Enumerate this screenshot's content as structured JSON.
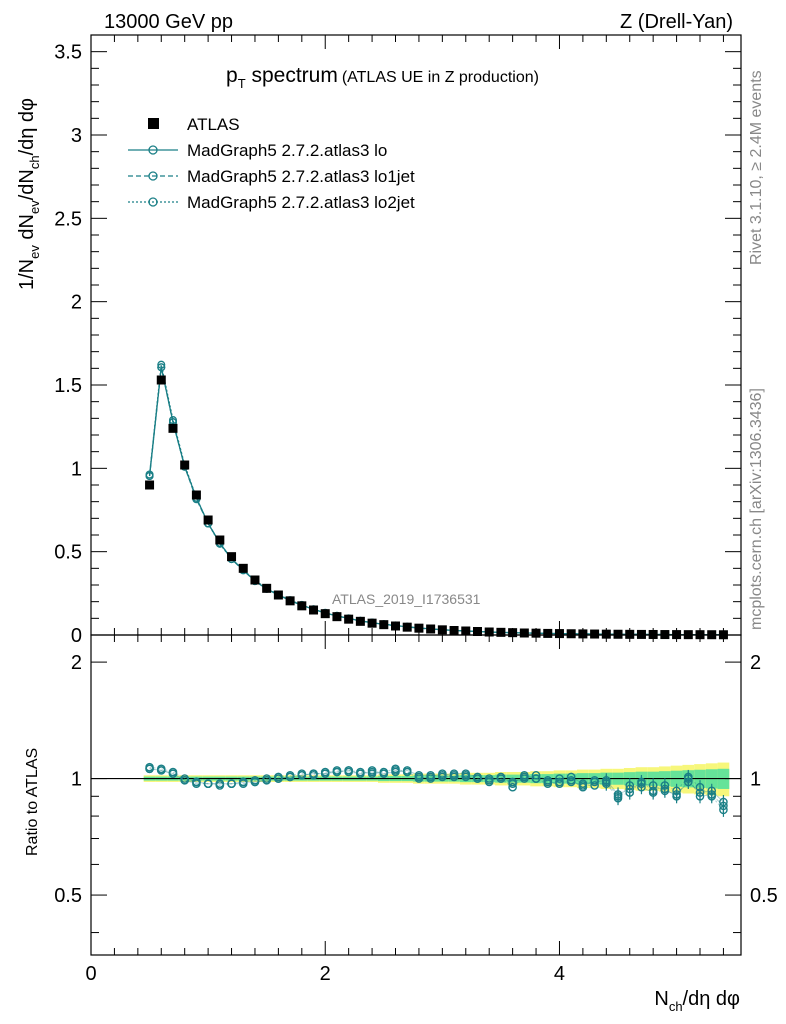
{
  "header": {
    "left": "13000 GeV pp",
    "right": "Z (Drell-Yan)"
  },
  "title": {
    "main": "p",
    "main_sub": "T",
    "main_rest": " spectrum",
    "detail": "(ATLAS UE in Z production)"
  },
  "side_labels": {
    "rivet": "Rivet 3.1.10, ≥ 2.4M events",
    "mcplots": "mcplots.cern.ch [arXiv:1306.3436]"
  },
  "watermark": "ATLAS_2019_I1736531",
  "axes": {
    "ylabel_top": {
      "p1": "1/N",
      "s1": "ev",
      "p2": " dN",
      "s2": "ev",
      "p3": "/dN",
      "s3": "ch",
      "p4": "/dη dφ"
    },
    "ylabel_bottom": "Ratio to ATLAS",
    "xlabel": {
      "p1": "N",
      "s1": "ch",
      "p2": "/dη dφ"
    }
  },
  "legend": [
    {
      "label": "ATLAS",
      "style": "data"
    },
    {
      "label": "MadGraph5 2.7.2.atlas3 lo",
      "style": "solid"
    },
    {
      "label": "MadGraph5 2.7.2.atlas3 lo1jet",
      "style": "dashed"
    },
    {
      "label": "MadGraph5 2.7.2.atlas3 lo2jet",
      "style": "dotted"
    }
  ],
  "colors": {
    "mc": "#1a7f86",
    "band_inner": "#66e399",
    "band_outer": "#f7f77b"
  },
  "chart_data": {
    "type": "scatter",
    "x": [
      0.5,
      0.6,
      0.7,
      0.8,
      0.9,
      1.0,
      1.1,
      1.2,
      1.3,
      1.4,
      1.5,
      1.6,
      1.7,
      1.8,
      1.9,
      2.0,
      2.1,
      2.2,
      2.3,
      2.4,
      2.5,
      2.6,
      2.7,
      2.8,
      2.9,
      3.0,
      3.1,
      3.2,
      3.3,
      3.4,
      3.5,
      3.6,
      3.7,
      3.8,
      3.9,
      4.0,
      4.1,
      4.2,
      4.3,
      4.4,
      4.5,
      4.6,
      4.7,
      4.8,
      4.9,
      5.0,
      5.1,
      5.2,
      5.3,
      5.4
    ],
    "data": [
      0.9,
      1.53,
      1.24,
      1.02,
      0.84,
      0.69,
      0.57,
      0.47,
      0.4,
      0.33,
      0.28,
      0.24,
      0.205,
      0.175,
      0.15,
      0.128,
      0.11,
      0.095,
      0.082,
      0.071,
      0.062,
      0.054,
      0.047,
      0.041,
      0.036,
      0.031,
      0.027,
      0.024,
      0.021,
      0.018,
      0.016,
      0.014,
      0.012,
      0.011,
      0.0095,
      0.0085,
      0.0075,
      0.0066,
      0.0058,
      0.0051,
      0.0045,
      0.004,
      0.0035,
      0.0031,
      0.0027,
      0.0024,
      0.0021,
      0.0019,
      0.0017,
      0.0015
    ],
    "series": [
      {
        "name": "MadGraph5 2.7.2.atlas3 lo",
        "ratio": [
          1.06,
          1.05,
          1.03,
          0.99,
          0.98,
          0.97,
          0.97,
          0.97,
          0.98,
          0.98,
          0.99,
          1.0,
          1.01,
          1.02,
          1.03,
          1.03,
          1.04,
          1.05,
          1.03,
          1.04,
          1.03,
          1.04,
          1.05,
          1.02,
          1.02,
          1.02,
          1.03,
          1.03,
          1.01,
          1.0,
          1.0,
          0.98,
          1.0,
          1.02,
          0.99,
          1.0,
          1.01,
          0.97,
          0.98,
          0.99,
          0.91,
          0.94,
          0.97,
          0.96,
          0.93,
          0.91,
          0.98,
          0.92,
          0.93,
          0.87
        ]
      },
      {
        "name": "MadGraph5 2.7.2.atlas3 lo1jet",
        "ratio": [
          1.06,
          1.05,
          1.03,
          0.99,
          0.97,
          0.97,
          0.97,
          0.97,
          0.97,
          0.98,
          0.99,
          1.0,
          1.01,
          1.02,
          1.03,
          1.03,
          1.05,
          1.04,
          1.03,
          1.05,
          1.03,
          1.05,
          1.04,
          1.01,
          1.0,
          1.01,
          1.02,
          1.02,
          1.0,
          0.98,
          1.01,
          0.97,
          1.02,
          1.0,
          0.98,
          0.97,
          0.99,
          0.95,
          0.99,
          0.97,
          0.89,
          0.96,
          0.95,
          0.92,
          0.94,
          0.9,
          1.0,
          0.9,
          0.91,
          0.85
        ]
      },
      {
        "name": "MadGraph5 2.7.2.atlas3 lo2jet",
        "ratio": [
          1.07,
          1.06,
          1.04,
          1.0,
          0.98,
          0.97,
          0.96,
          0.97,
          0.98,
          0.99,
          1.0,
          1.01,
          1.02,
          1.03,
          1.02,
          1.04,
          1.04,
          1.05,
          1.04,
          1.03,
          1.04,
          1.06,
          1.04,
          1.0,
          1.01,
          1.03,
          1.01,
          1.01,
          1.0,
          0.99,
          1.0,
          0.95,
          1.01,
          1.0,
          0.97,
          0.98,
          0.98,
          0.96,
          0.96,
          0.98,
          0.9,
          0.92,
          0.98,
          0.93,
          0.96,
          0.93,
          1.01,
          0.95,
          0.9,
          0.83
        ]
      }
    ],
    "band_outer_halfwidth": [
      0.02,
      0.02,
      0.02,
      0.02,
      0.02,
      0.02,
      0.02,
      0.02,
      0.02,
      0.02,
      0.02,
      0.02,
      0.02,
      0.02,
      0.02,
      0.02,
      0.02,
      0.02,
      0.02,
      0.02,
      0.025,
      0.025,
      0.025,
      0.03,
      0.03,
      0.03,
      0.03,
      0.035,
      0.035,
      0.035,
      0.04,
      0.04,
      0.04,
      0.045,
      0.045,
      0.05,
      0.05,
      0.055,
      0.055,
      0.06,
      0.06,
      0.065,
      0.07,
      0.07,
      0.075,
      0.08,
      0.085,
      0.09,
      0.095,
      0.1
    ],
    "xlim": [
      0,
      5.55
    ],
    "ylim_top": [
      0,
      3.6
    ],
    "ylim_ratio": [
      0.35,
      2.35
    ],
    "ratio_log_scale": true,
    "xticks": [
      "0",
      "2",
      "4"
    ],
    "yticks_top": [
      "0",
      "0.5",
      "1",
      "1.5",
      "2",
      "2.5",
      "3",
      "3.5"
    ],
    "yticks_ratio": [
      "0.5",
      "1",
      "2"
    ],
    "legend_position": "top-left"
  }
}
